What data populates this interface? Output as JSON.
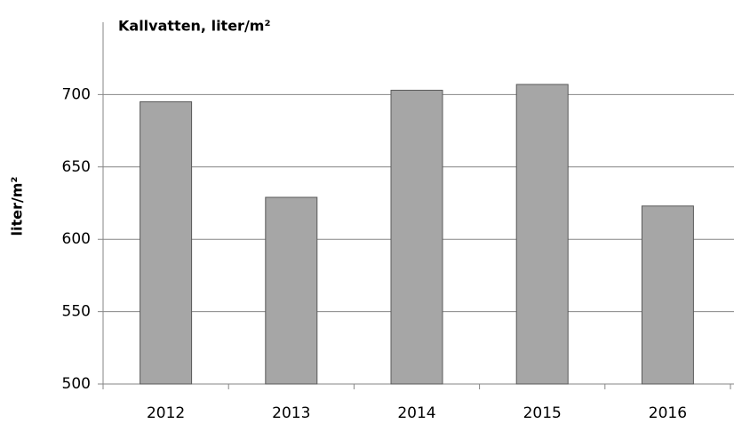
{
  "chart_data": {
    "type": "bar",
    "title": "Kallvatten, liter/m²",
    "y_label": "liter/m²",
    "categories": [
      "2012",
      "2013",
      "2014",
      "2015",
      "2016"
    ],
    "values": [
      695,
      629,
      703,
      707,
      623
    ],
    "color": "#a6a6a6",
    "ylim": [
      500,
      750
    ],
    "yticks": [
      500,
      550,
      600,
      650,
      700
    ],
    "grid": true
  }
}
